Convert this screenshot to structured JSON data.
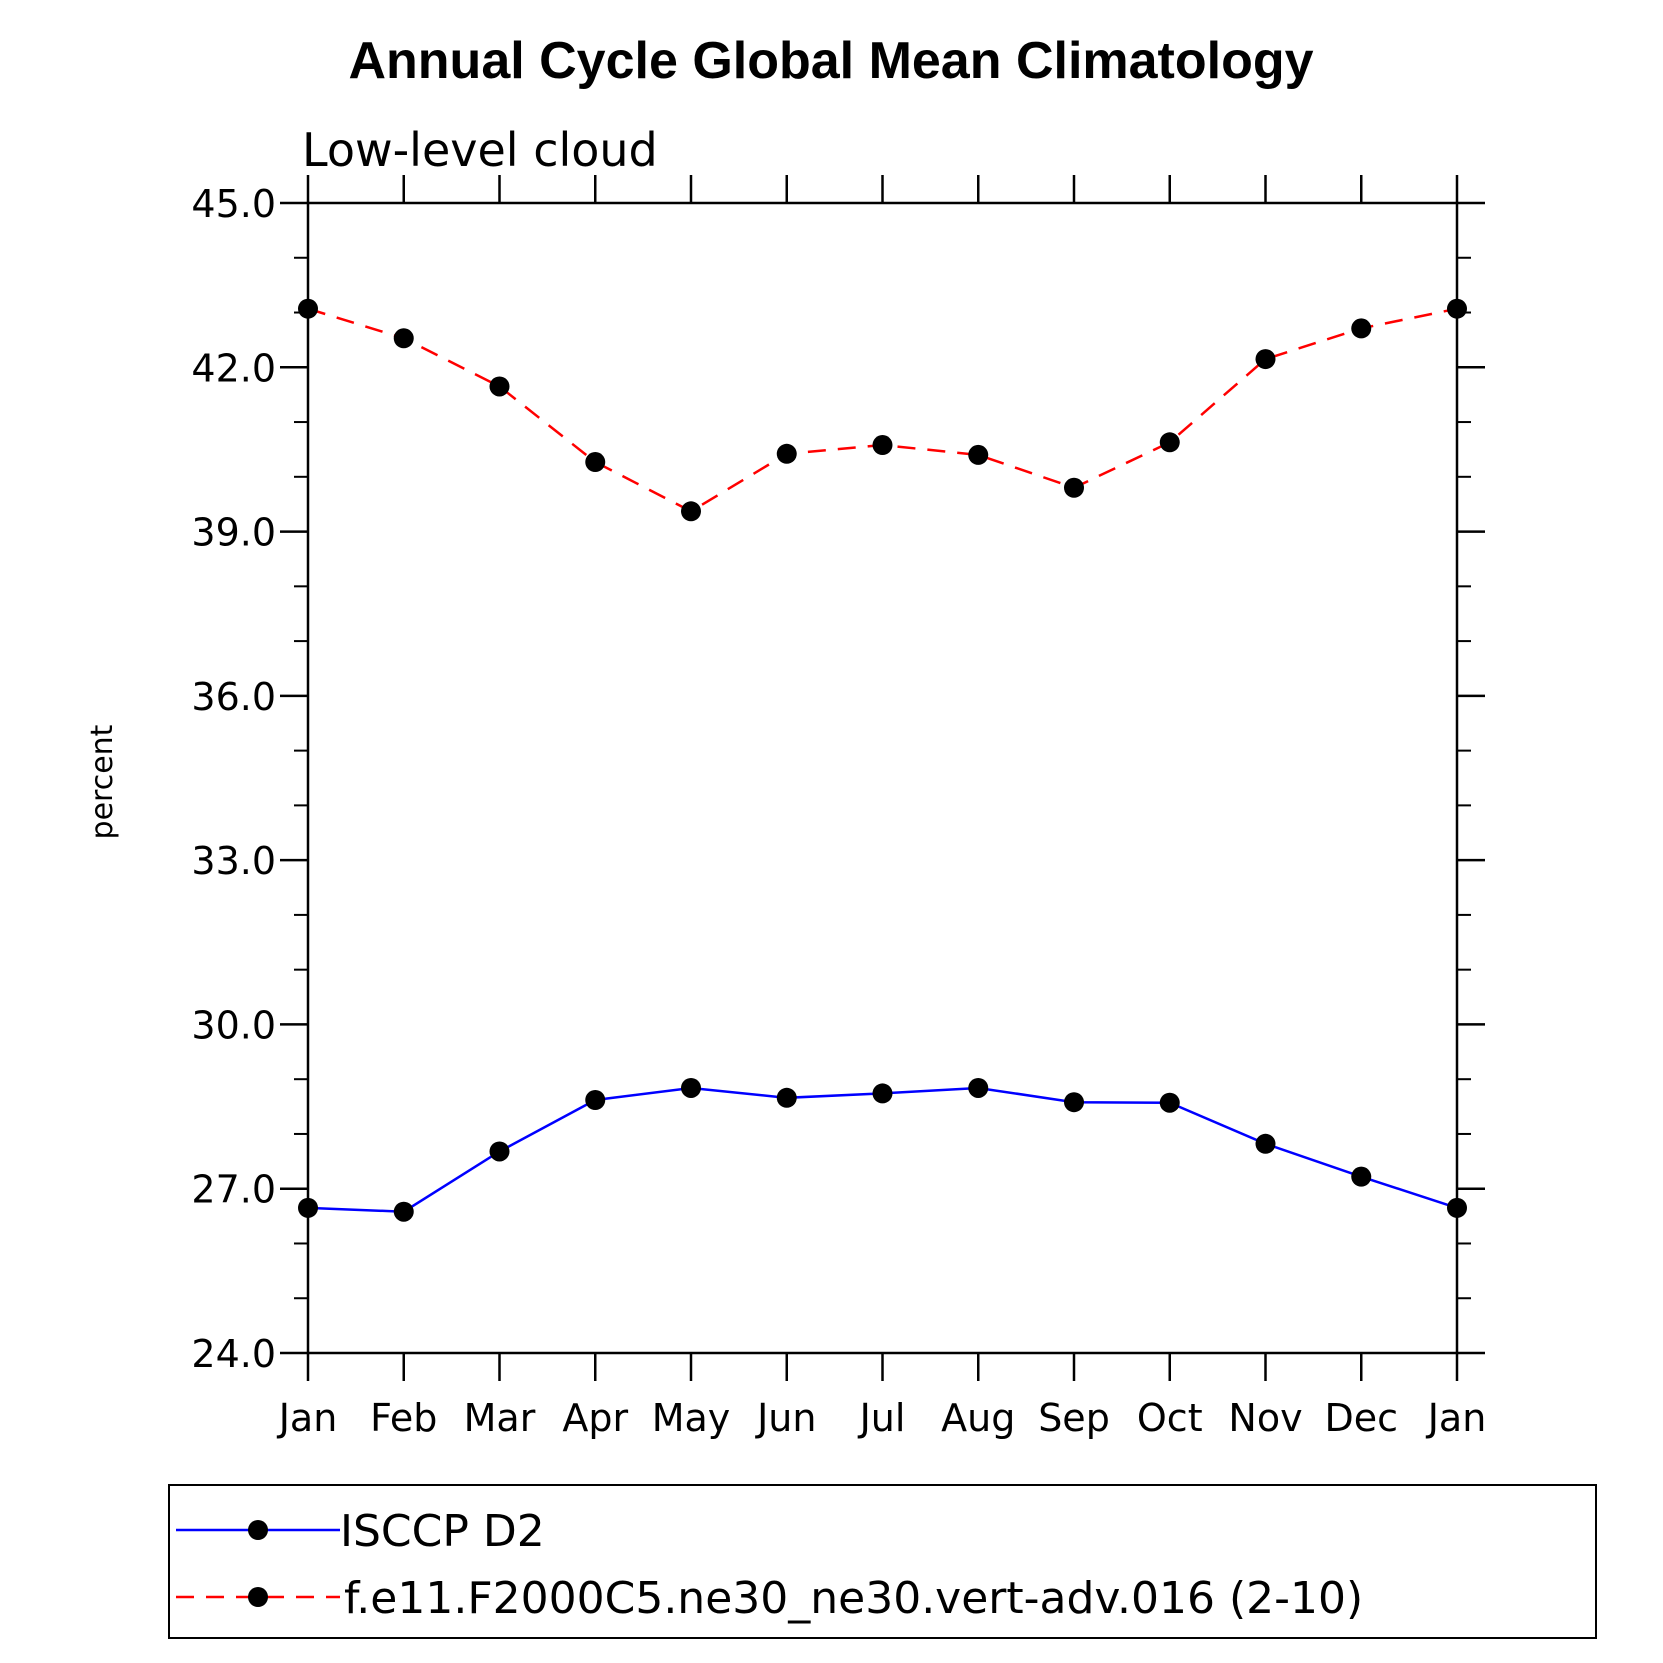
{
  "chart_data": {
    "type": "line",
    "title": "Annual Cycle Global Mean Climatology",
    "subtitle": "Low-level cloud",
    "xlabel": "",
    "ylabel": "percent",
    "categories": [
      "Jan",
      "Feb",
      "Mar",
      "Apr",
      "May",
      "Jun",
      "Jul",
      "Aug",
      "Sep",
      "Oct",
      "Nov",
      "Dec",
      "Jan"
    ],
    "ylim": [
      24.0,
      45.0
    ],
    "yticks": [
      "24.0",
      "27.0",
      "30.0",
      "33.0",
      "36.0",
      "39.0",
      "42.0",
      "45.0"
    ],
    "grid": false,
    "legend_position": "bottom",
    "series": [
      {
        "name": "ISCCP D2",
        "color": "#0000ff",
        "line_style": "solid",
        "marker": "filled-circle",
        "values": [
          26.65,
          26.58,
          27.68,
          28.62,
          28.84,
          28.66,
          28.74,
          28.84,
          28.58,
          28.57,
          27.82,
          27.22,
          26.65
        ]
      },
      {
        "name": "f.e11.F2000C5.ne30_ne30.vert-adv.016 (2-10)",
        "color": "#ff0000",
        "line_style": "dashed",
        "marker": "filled-circle",
        "values": [
          43.07,
          42.53,
          41.65,
          40.27,
          39.37,
          40.42,
          40.58,
          40.4,
          39.8,
          40.63,
          42.15,
          42.71,
          43.07
        ]
      }
    ]
  }
}
